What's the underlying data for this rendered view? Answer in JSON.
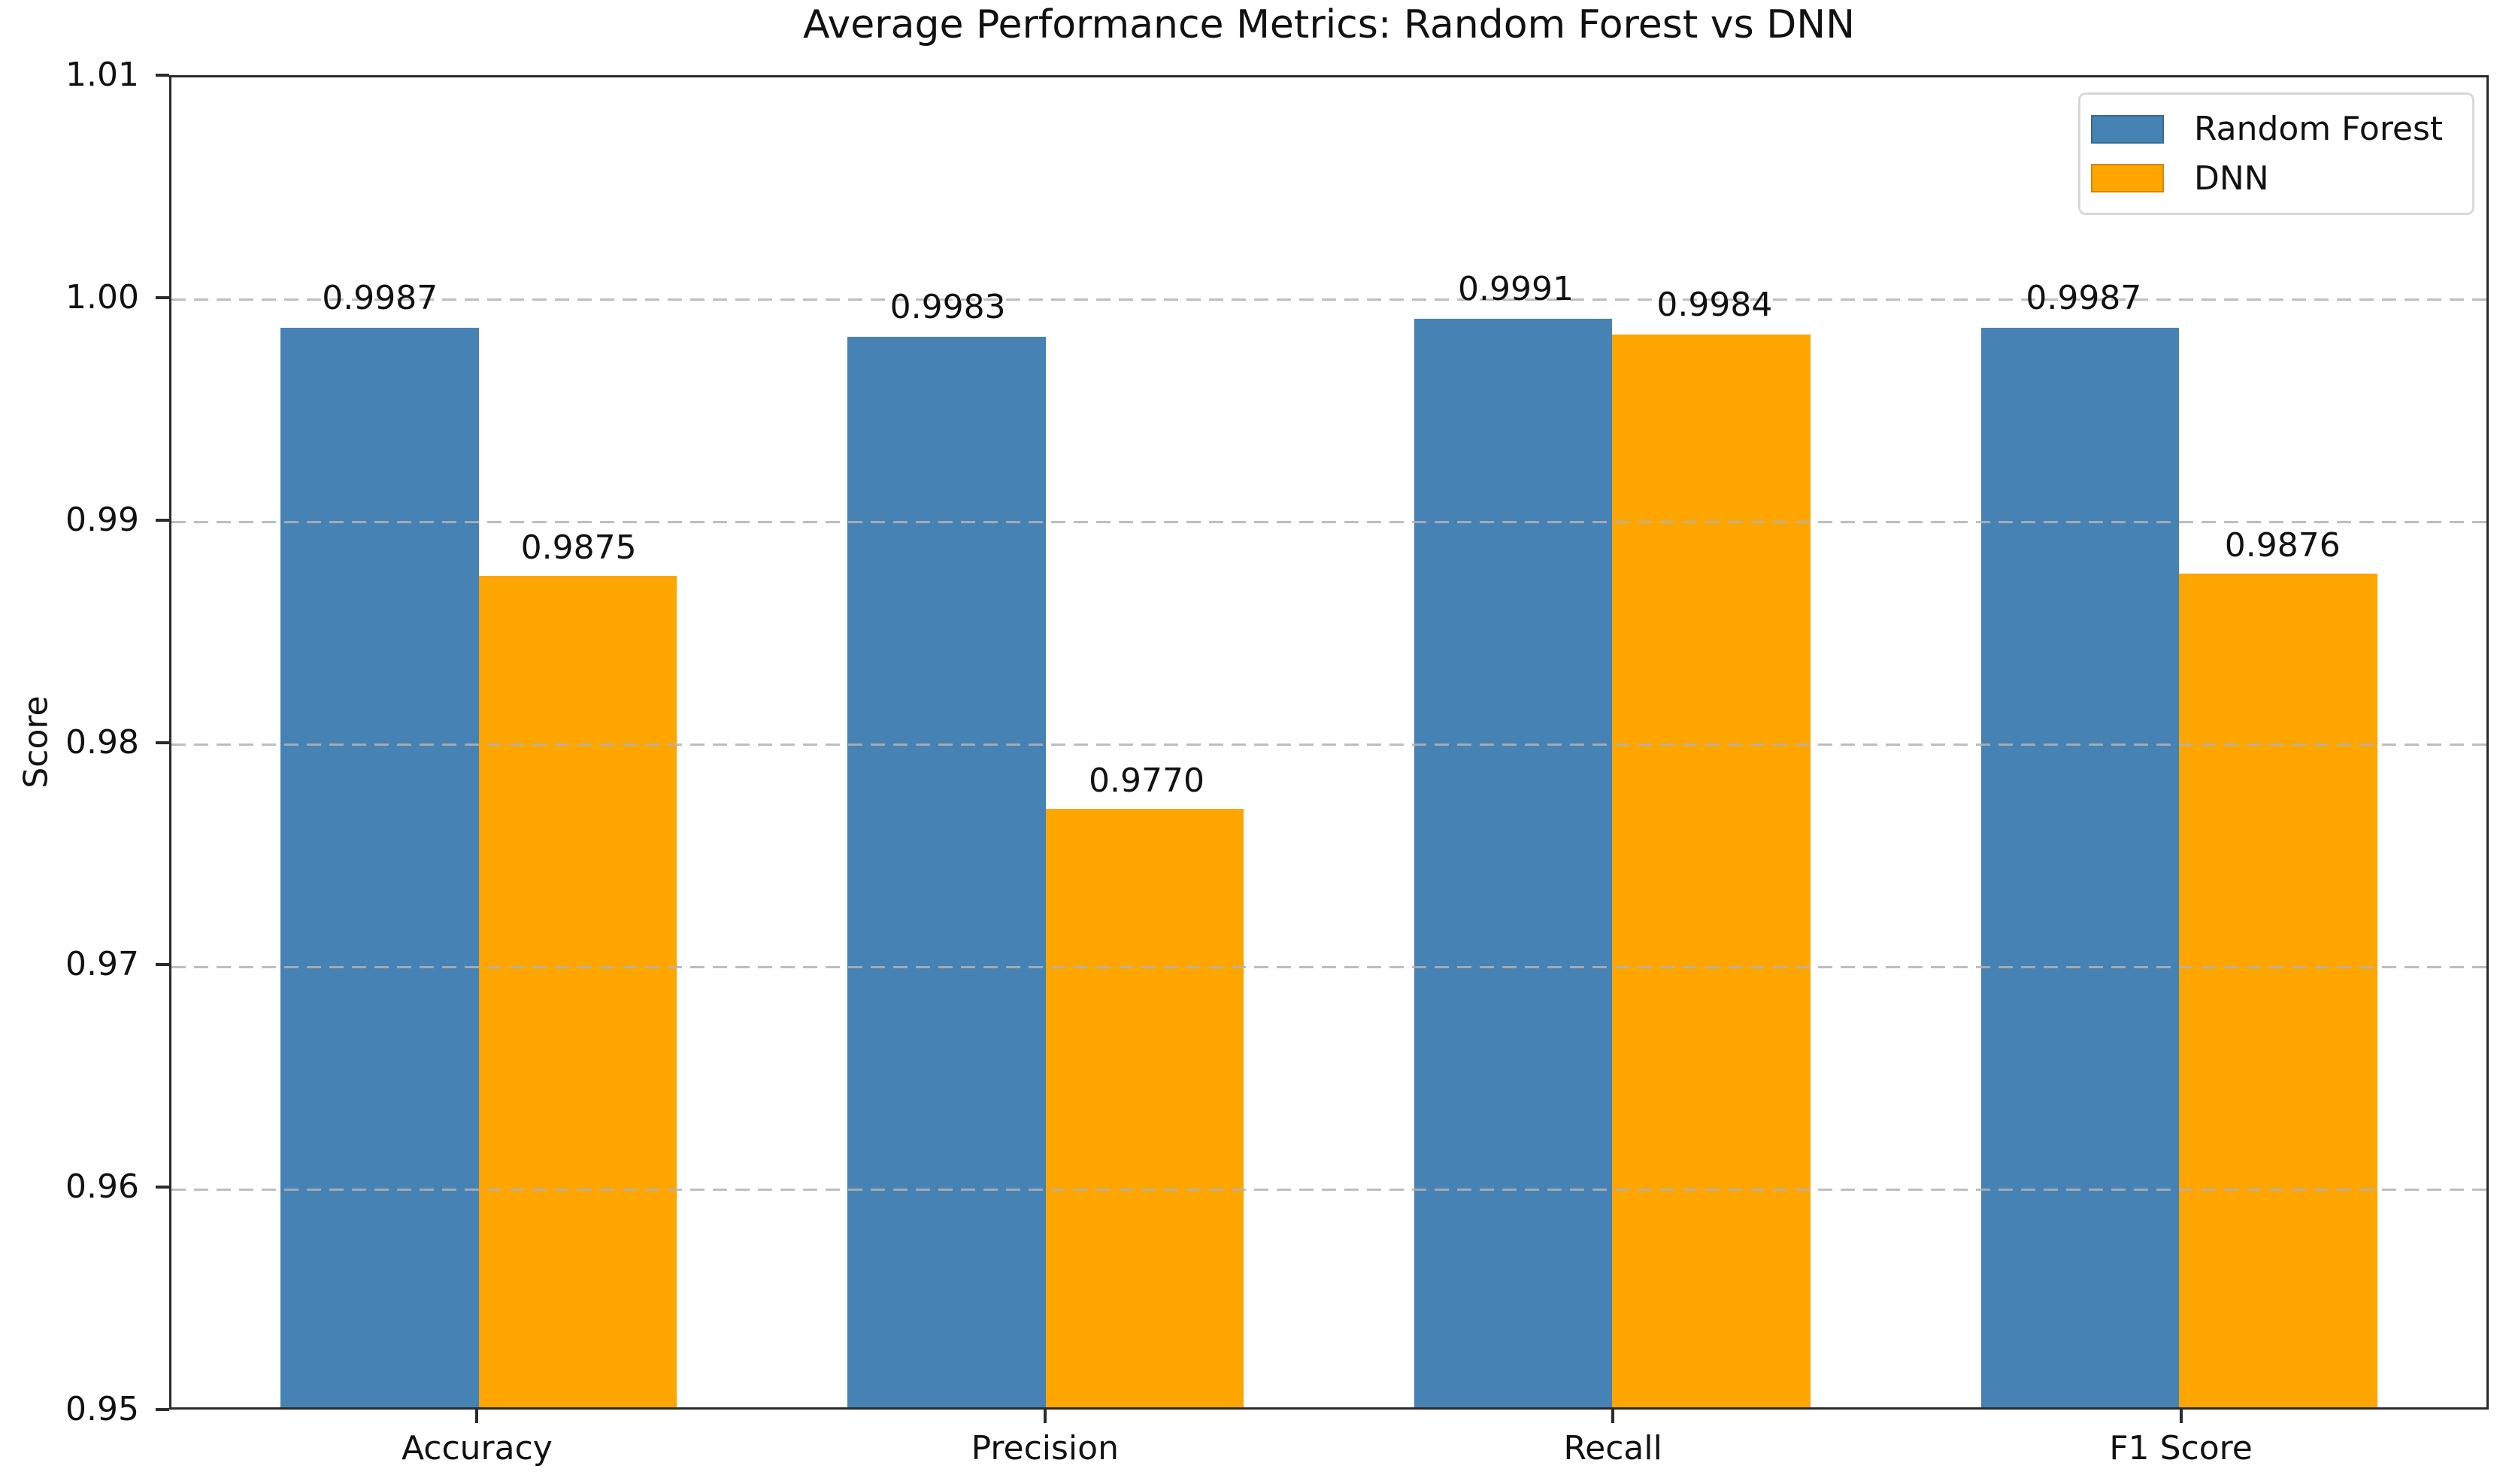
{
  "chart_data": {
    "type": "bar",
    "title": "Average Performance Metrics: Random Forest vs DNN",
    "xlabel": "",
    "ylabel": "Score",
    "categories": [
      "Accuracy",
      "Precision",
      "Recall",
      "F1 Score"
    ],
    "series": [
      {
        "name": "Random Forest",
        "color": "#4682B4",
        "values": [
          0.9987,
          0.9983,
          0.9991,
          0.9987
        ],
        "labels": [
          "0.9987",
          "0.9983",
          "0.9991",
          "0.9987"
        ]
      },
      {
        "name": "DNN",
        "color": "#FFA500",
        "values": [
          0.9875,
          0.977,
          0.9984,
          0.9876
        ],
        "labels": [
          "0.9875",
          "0.9770",
          "0.9984",
          "0.9876"
        ]
      }
    ],
    "ylim": [
      0.95,
      1.01
    ],
    "yticks": [
      0.95,
      0.96,
      0.97,
      0.98,
      0.99,
      1.0,
      1.01
    ],
    "ytick_labels": [
      "0.95",
      "0.96",
      "0.97",
      "0.98",
      "0.99",
      "1.00",
      "1.01"
    ],
    "bar_width_units": 0.35,
    "grid": "horizontal dashed",
    "legend_position": "upper right",
    "axis_color": "#2b2b2b",
    "grid_color": "#b2b2b2",
    "background_color": "#ffffff"
  }
}
